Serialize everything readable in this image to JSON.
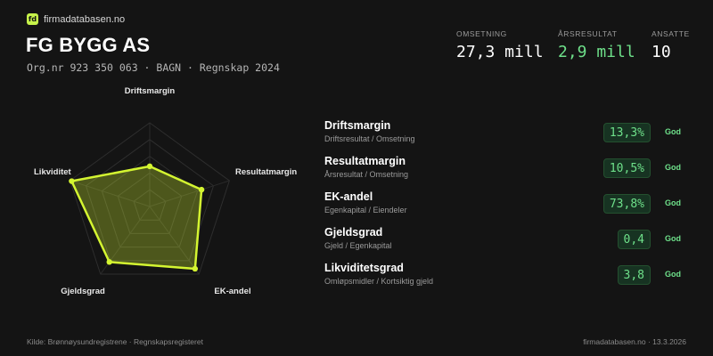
{
  "brand": {
    "logo_text": "fd",
    "name": "firmadatabasen.no"
  },
  "company": {
    "name": "FG BYGG AS",
    "subline": "Org.nr 923 350 063  ·  BAGN  ·  Regnskap 2024"
  },
  "stats": [
    {
      "label": "OMSETNING",
      "value": "27,3 mill",
      "color": "#ffffff"
    },
    {
      "label": "ÅRSRESULTAT",
      "value": "2,9 mill",
      "color": "#6ee08a"
    },
    {
      "label": "ANSATTE",
      "value": "10",
      "color": "#ffffff"
    }
  ],
  "radar": {
    "labels": [
      "Driftsmargin",
      "Resultatmargin",
      "EK-andel",
      "Gjeldsgrad",
      "Likviditet"
    ],
    "scores": [
      0.48,
      0.65,
      0.92,
      0.82,
      0.98
    ],
    "accent": "#d4f531"
  },
  "metrics": [
    {
      "name": "Driftsmargin",
      "formula": "Driftsresultat / Omsetning",
      "value": "13,3%",
      "badge": "God"
    },
    {
      "name": "Resultatmargin",
      "formula": "Årsresultat / Omsetning",
      "value": "10,5%",
      "badge": "God"
    },
    {
      "name": "EK-andel",
      "formula": "Egenkapital / Eiendeler",
      "value": "73,8%",
      "badge": "God"
    },
    {
      "name": "Gjeldsgrad",
      "formula": "Gjeld / Egenkapital",
      "value": "0,4",
      "badge": "God"
    },
    {
      "name": "Likviditetsgrad",
      "formula": "Omløpsmidler / Kortsiktig gjeld",
      "value": "3,8",
      "badge": "God"
    }
  ],
  "footer": {
    "source": "Kilde: Brønnøysundregistrene · Regnskapsregisteret",
    "site": "firmadatabasen.no · 13.3.2026"
  },
  "colors": {
    "background": "#141414",
    "accent": "#d4f531",
    "good": "#6ee08a"
  }
}
